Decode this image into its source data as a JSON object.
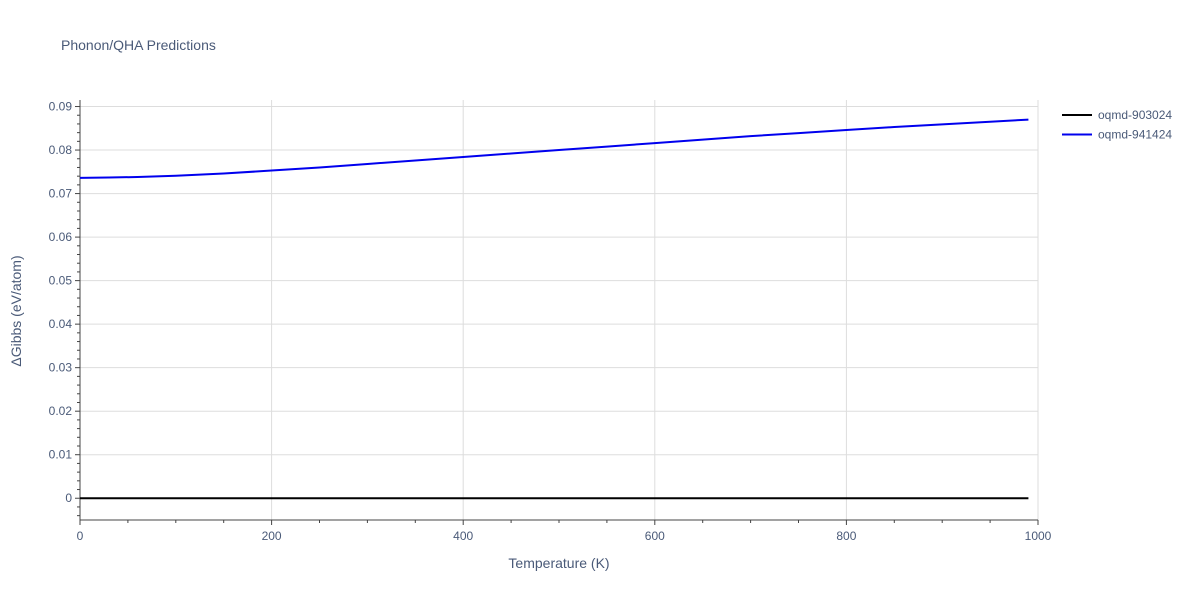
{
  "chart_data": {
    "type": "line",
    "title": "Phonon/QHA Predictions",
    "xlabel": "Temperature (K)",
    "ylabel": "ΔGibbs (eV/atom)",
    "xlim": [
      0,
      1000
    ],
    "ylim": [
      -0.005,
      0.0915
    ],
    "xticks": [
      0,
      200,
      400,
      600,
      800,
      1000
    ],
    "xtick_labels": [
      "0",
      "200",
      "400",
      "600",
      "800",
      "1000"
    ],
    "yticks": [
      0,
      0.01,
      0.02,
      0.03,
      0.04,
      0.05,
      0.06,
      0.07,
      0.08,
      0.09
    ],
    "ytick_labels": [
      "0",
      "0.01",
      "0.02",
      "0.03",
      "0.04",
      "0.05",
      "0.06",
      "0.07",
      "0.08",
      "0.09"
    ],
    "grid": true,
    "legend_position": "top-right",
    "series": [
      {
        "name": "oqmd-903024",
        "color": "#000000",
        "x": [
          0,
          100,
          200,
          300,
          400,
          500,
          600,
          700,
          800,
          900,
          990
        ],
        "y": [
          0,
          0,
          0,
          0,
          0,
          0,
          0,
          0,
          0,
          0,
          0
        ]
      },
      {
        "name": "oqmd-941424",
        "color": "#0000ee",
        "x": [
          0,
          30,
          60,
          100,
          150,
          200,
          250,
          300,
          350,
          400,
          450,
          500,
          550,
          600,
          650,
          700,
          750,
          800,
          850,
          900,
          950,
          990
        ],
        "y": [
          0.0736,
          0.0737,
          0.0738,
          0.0741,
          0.0746,
          0.0753,
          0.076,
          0.0768,
          0.0776,
          0.0784,
          0.0792,
          0.08,
          0.0808,
          0.0816,
          0.0824,
          0.0832,
          0.0839,
          0.0846,
          0.0853,
          0.0859,
          0.0865,
          0.087
        ]
      }
    ]
  }
}
